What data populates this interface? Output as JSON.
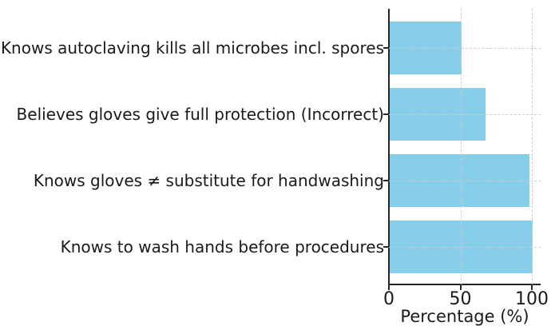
{
  "chart_data": {
    "type": "bar",
    "orientation": "horizontal",
    "categories": [
      "Knows autoclaving kills all microbes incl. spores",
      "Believes gloves give full protection (Incorrect)",
      "Knows gloves ≠ substitute for handwashing",
      "Knows to wash hands before procedures"
    ],
    "values": [
      50,
      67,
      98,
      100
    ],
    "title": "",
    "xlabel": "Percentage (%)",
    "ylabel": "",
    "xlim": [
      0,
      106
    ],
    "xticks": [
      0,
      50,
      100
    ],
    "grid": true,
    "legend": "none",
    "bar_color": "#87CEEB",
    "axis_color": "#262626",
    "grid_color": "#cccccc",
    "text_color": "#1a1a1a",
    "background_color": "#ffffff"
  }
}
